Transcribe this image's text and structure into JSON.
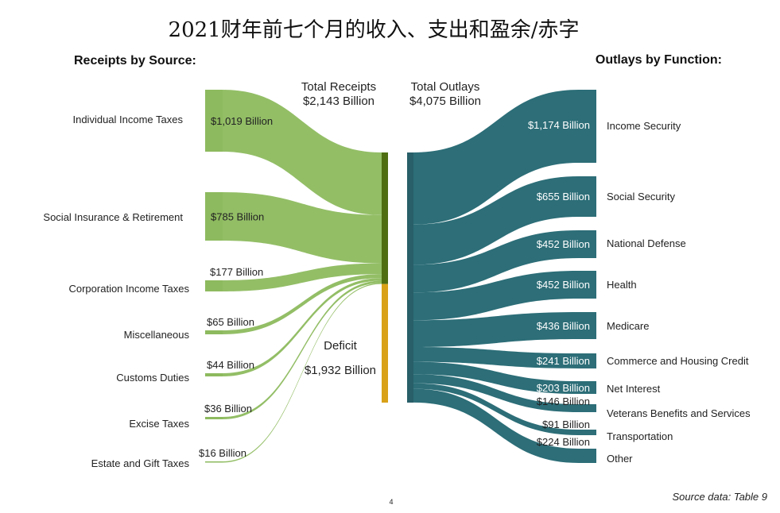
{
  "title": "2021财年前七个月的收入、支出和盈余/赤字",
  "receipts_heading": "Receipts by Source:",
  "outlays_heading": "Outlays by Function:",
  "total_receipts_label": "Total Receipts",
  "total_receipts_value": "$2,143 Billion",
  "total_outlays_label": "Total Outlays",
  "total_outlays_value": "$4,075 Billion",
  "deficit_label": "Deficit",
  "deficit_value": "$1,932 Billion",
  "source_note": "Source data: Table 9",
  "page_number": "4",
  "colors": {
    "receipts": "#8dba5e",
    "receipts_bar": "#4f6e12",
    "deficit_bar": "#d9a118",
    "outlays": "#2d6e78",
    "outlays_bar": "#285f68"
  },
  "chart_data": {
    "type": "sankey",
    "title": "2021财年前七个月的收入、支出和盈余/赤字",
    "units": "$ Billion",
    "receipts": [
      {
        "name": "Individual Income Taxes",
        "value": 1019,
        "label": "$1,019 Billion"
      },
      {
        "name": "Social Insurance & Retirement",
        "value": 785,
        "label": "$785 Billion"
      },
      {
        "name": "Corporation Income Taxes",
        "value": 177,
        "label": "$177 Billion"
      },
      {
        "name": "Miscellaneous",
        "value": 65,
        "label": "$65 Billion"
      },
      {
        "name": "Customs Duties",
        "value": 44,
        "label": "$44 Billion"
      },
      {
        "name": "Excise Taxes",
        "value": 36,
        "label": "$36 Billion"
      },
      {
        "name": "Estate and Gift Taxes",
        "value": 16,
        "label": "$16 Billion"
      }
    ],
    "outlays": [
      {
        "name": "Income Security",
        "value": 1174,
        "label": "$1,174 Billion"
      },
      {
        "name": "Social Security",
        "value": 655,
        "label": "$655 Billion"
      },
      {
        "name": "National Defense",
        "value": 452,
        "label": "$452 Billion"
      },
      {
        "name": "Health",
        "value": 452,
        "label": "$452 Billion"
      },
      {
        "name": "Medicare",
        "value": 436,
        "label": "$436 Billion"
      },
      {
        "name": "Commerce and Housing Credit",
        "value": 241,
        "label": "$241 Billion"
      },
      {
        "name": "Net Interest",
        "value": 203,
        "label": "$203 Billion"
      },
      {
        "name": "Veterans Benefits and Services",
        "value": 146,
        "label": "$146 Billion"
      },
      {
        "name": "Transportation",
        "value": 91,
        "label": "$91 Billion"
      },
      {
        "name": "Other",
        "value": 224,
        "label": "$224 Billion"
      }
    ],
    "total_receipts": 2143,
    "total_outlays": 4075,
    "deficit": 1932
  }
}
